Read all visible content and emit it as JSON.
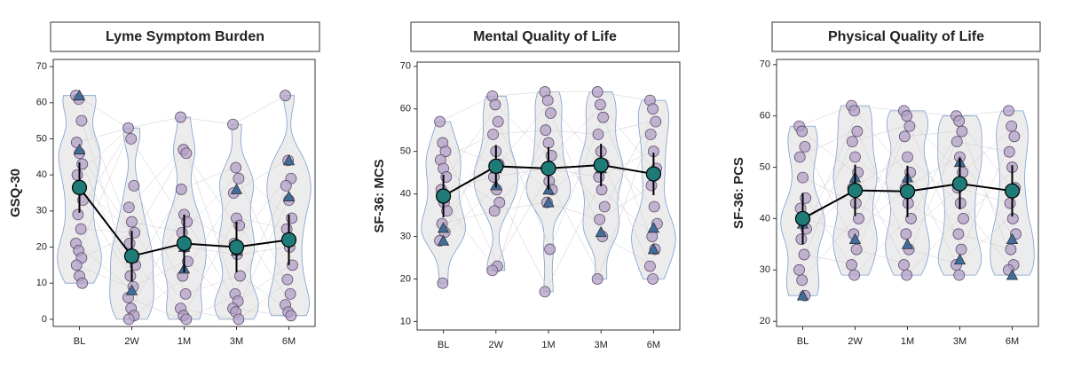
{
  "chart_data": [
    {
      "type": "violin",
      "title": "Lyme Symptom Burden",
      "ylabel": "GSQ-30",
      "categories": [
        "BL",
        "2W",
        "1M",
        "3M",
        "6M"
      ],
      "ylim": [
        -2,
        72
      ],
      "yticks": [
        0,
        10,
        20,
        30,
        40,
        50,
        60,
        70
      ],
      "point_color": "#b3a0c6",
      "triangle_color": "#3f6e9c",
      "mean_color": "#1e7b78",
      "violin_color": "#ececec",
      "points": [
        [
          62,
          61,
          55,
          49,
          46,
          43,
          40,
          37,
          33,
          29,
          25,
          21,
          19,
          17,
          15,
          12,
          10
        ],
        [
          53,
          50,
          37,
          31,
          27,
          24,
          21,
          18,
          15,
          12,
          9,
          6,
          3,
          1,
          0
        ],
        [
          56,
          47,
          46,
          36,
          29,
          27,
          24,
          20,
          16,
          12,
          7,
          3,
          1,
          0
        ],
        [
          54,
          42,
          39,
          35,
          28,
          26,
          21,
          18,
          12,
          7,
          5,
          3,
          2,
          0
        ],
        [
          62,
          44,
          39,
          37,
          33,
          28,
          25,
          20,
          15,
          11,
          7,
          4,
          2,
          1
        ]
      ],
      "triangles": [
        [
          62,
          47
        ],
        [
          8,
          17
        ],
        [
          14,
          20
        ],
        [
          36,
          19
        ],
        [
          44,
          34
        ]
      ],
      "mean": [
        36.5,
        17.5,
        21,
        20,
        22
      ],
      "error": [
        7,
        7,
        8,
        7,
        7
      ]
    },
    {
      "type": "violin",
      "title": "Mental Quality of Life",
      "ylabel": "SF-36: MCS",
      "categories": [
        "BL",
        "2W",
        "1M",
        "3M",
        "6M"
      ],
      "ylim": [
        8,
        71
      ],
      "yticks": [
        10,
        20,
        30,
        40,
        50,
        60,
        70
      ],
      "point_color": "#b3a0c6",
      "triangle_color": "#3f6e9c",
      "mean_color": "#1e7b78",
      "violin_color": "#ececec",
      "points": [
        [
          57,
          52,
          50,
          48,
          46,
          44,
          41,
          38,
          36,
          33,
          31,
          29,
          19
        ],
        [
          63,
          61,
          57,
          54,
          50,
          47,
          44,
          41,
          38,
          36,
          23,
          22
        ],
        [
          64,
          62,
          59,
          55,
          52,
          49,
          46,
          43,
          41,
          38,
          27,
          17
        ],
        [
          64,
          61,
          58,
          54,
          50,
          47,
          44,
          41,
          37,
          34,
          30,
          20
        ],
        [
          62,
          60,
          57,
          54,
          50,
          46,
          42,
          37,
          33,
          30,
          27,
          23,
          20
        ]
      ],
      "triangles": [
        [
          29,
          32
        ],
        [
          42,
          46
        ],
        [
          38,
          41
        ],
        [
          31,
          46
        ],
        [
          27,
          32
        ]
      ],
      "mean": [
        39.5,
        46.5,
        46,
        46.8,
        44.7
      ],
      "error": [
        5,
        5,
        5,
        5,
        5
      ]
    },
    {
      "type": "violin",
      "title": "Physical Quality of Life",
      "ylabel": "SF-36: PCS",
      "categories": [
        "BL",
        "2W",
        "1M",
        "3M",
        "6M"
      ],
      "ylim": [
        19,
        71
      ],
      "yticks": [
        20,
        30,
        40,
        50,
        60,
        70
      ],
      "point_color": "#b3a0c6",
      "triangle_color": "#3f6e9c",
      "mean_color": "#1e7b78",
      "violin_color": "#ececec",
      "points": [
        [
          58,
          57,
          54,
          52,
          48,
          44,
          42,
          40,
          38,
          36,
          33,
          30,
          28,
          25
        ],
        [
          62,
          61,
          57,
          55,
          52,
          49,
          46,
          43,
          40,
          37,
          34,
          31,
          29
        ],
        [
          61,
          60,
          58,
          56,
          52,
          49,
          46,
          43,
          40,
          37,
          34,
          31,
          29
        ],
        [
          60,
          59,
          57,
          55,
          52,
          49,
          46,
          43,
          40,
          37,
          34,
          31,
          29
        ],
        [
          61,
          58,
          56,
          53,
          50,
          46,
          43,
          40,
          37,
          34,
          31,
          30
        ]
      ],
      "triangles": [
        [
          25,
          39
        ],
        [
          36,
          48
        ],
        [
          35,
          48
        ],
        [
          32,
          51
        ],
        [
          29,
          36
        ]
      ],
      "mean": [
        40,
        45.5,
        45.3,
        46.8,
        45.4
      ],
      "error": [
        5,
        5,
        5,
        5,
        5
      ]
    }
  ]
}
